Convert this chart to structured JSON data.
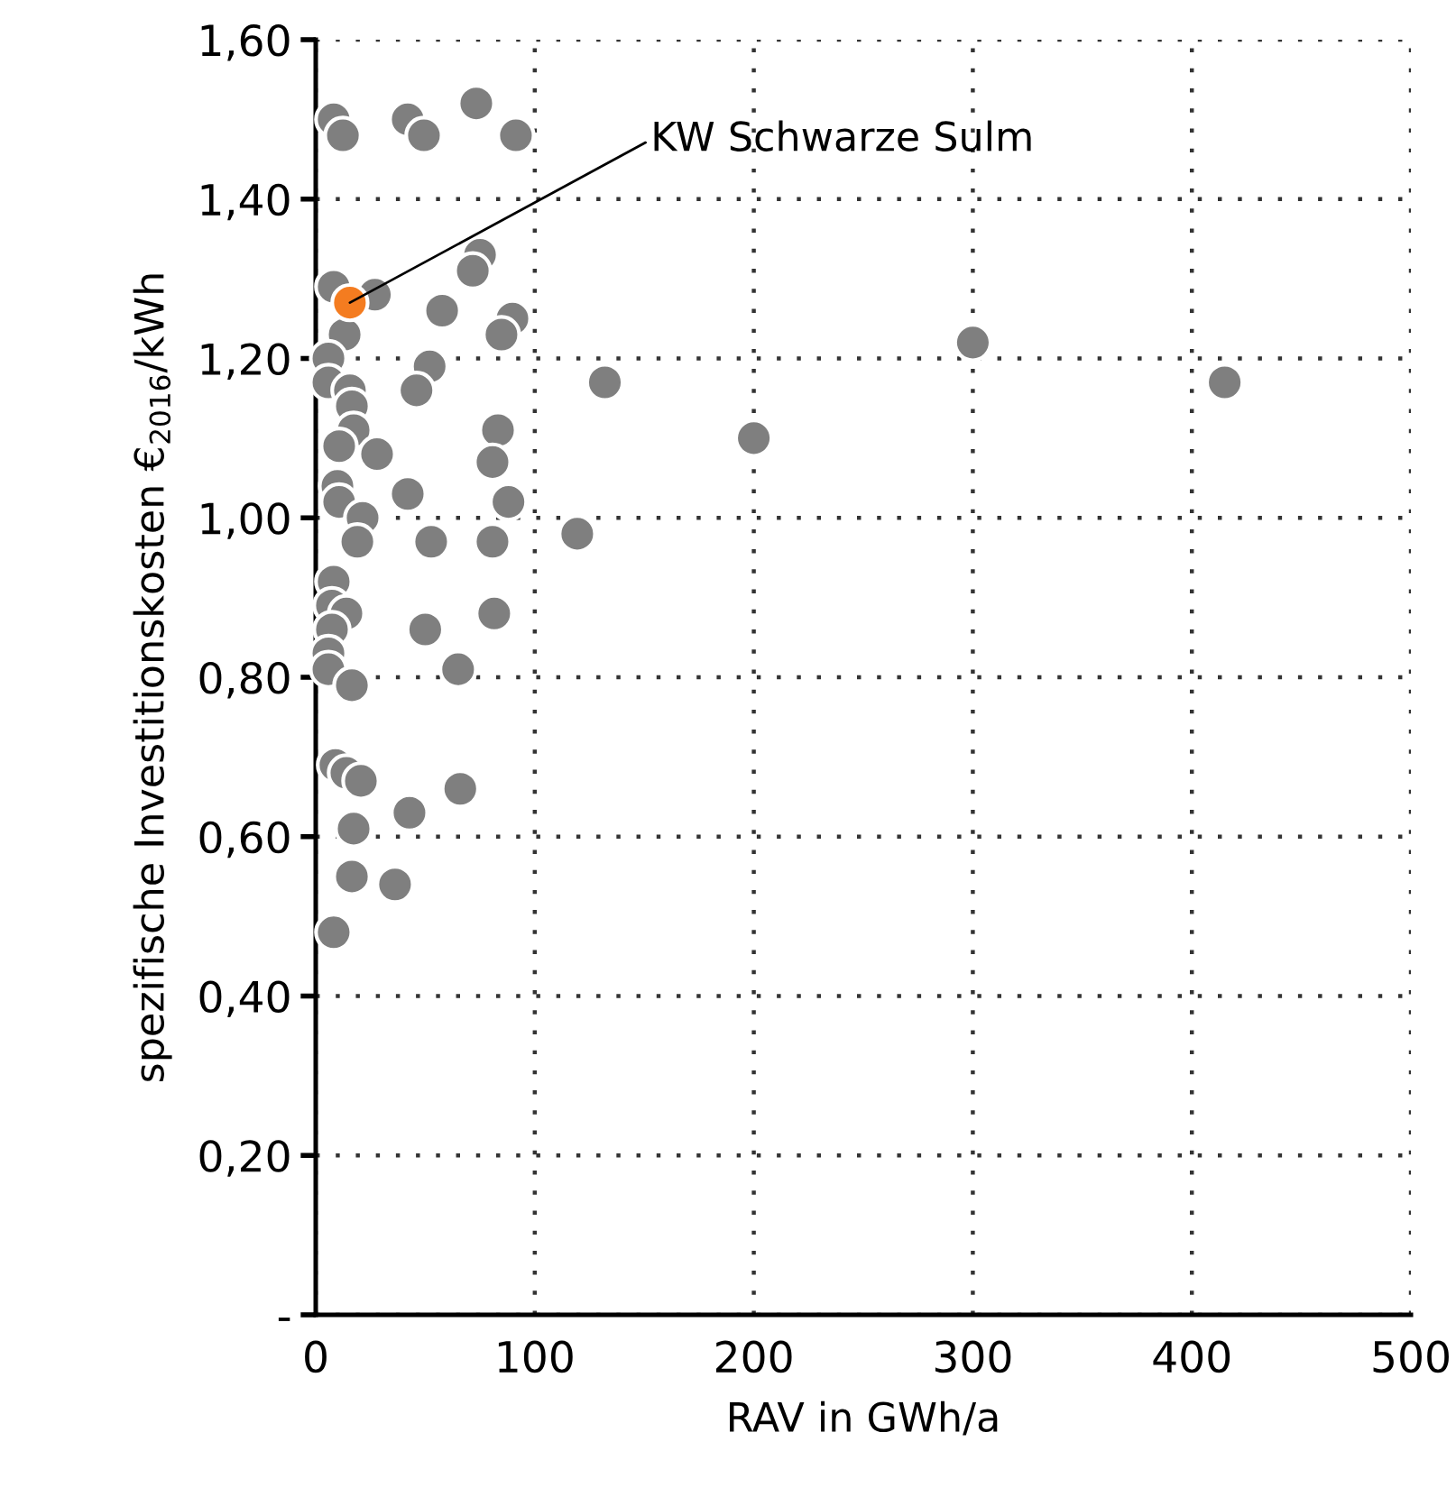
{
  "chart_data": {
    "type": "scatter",
    "xlabel": "RAV in GWh/a",
    "ylabel": "spezifische Investitionskosten €$_{2016}$/kWh",
    "xlim": [
      0,
      500
    ],
    "xticks": [
      0,
      100,
      200,
      300,
      400,
      500
    ],
    "ylim": [
      0,
      1.6
    ],
    "yticks": [
      {
        "value": 0,
        "label": "-"
      },
      {
        "value": 0.2,
        "label": "0,20"
      },
      {
        "value": 0.4,
        "label": "0,40"
      },
      {
        "value": 0.6,
        "label": "0,60"
      },
      {
        "value": 0.8,
        "label": "0,80"
      },
      {
        "value": 1.0,
        "label": "1,00"
      },
      {
        "value": 1.2,
        "label": "1,20"
      },
      {
        "value": 1.4,
        "label": "1,40"
      },
      {
        "value": 1.6,
        "label": "1,60"
      }
    ],
    "grid": true,
    "marker": "circle",
    "legend": false,
    "series": [
      {
        "color": "#7f7f7f",
        "x": [
          8.2,
          12.4,
          42,
          49.4,
          73.3,
          91.4,
          75,
          71.7,
          8.2,
          27,
          57.7,
          89.8,
          84.8,
          13.2,
          5.8,
          5.8,
          15.6,
          16.5,
          52,
          46,
          132,
          17.3,
          83.2,
          10.7,
          28,
          80.7,
          9.9,
          10.7,
          42,
          88,
          21.4,
          19,
          52.7,
          80.7,
          119.4,
          8.2,
          7.4,
          14,
          7.4,
          50,
          81.5,
          5.8,
          5.8,
          16.5,
          65,
          9,
          14,
          20.6,
          66,
          42.8,
          17.3,
          16.5,
          36.2,
          8.2,
          200,
          300,
          415
        ],
        "values": [
          1.5,
          1.48,
          1.5,
          1.48,
          1.52,
          1.48,
          1.33,
          1.31,
          1.29,
          1.28,
          1.26,
          1.25,
          1.23,
          1.23,
          1.2,
          1.17,
          1.16,
          1.14,
          1.19,
          1.16,
          1.17,
          1.11,
          1.11,
          1.09,
          1.08,
          1.07,
          1.04,
          1.02,
          1.03,
          1.02,
          1.0,
          0.97,
          0.97,
          0.97,
          0.98,
          0.92,
          0.89,
          0.88,
          0.86,
          0.86,
          0.88,
          0.83,
          0.81,
          0.79,
          0.81,
          0.69,
          0.68,
          0.67,
          0.66,
          0.63,
          0.61,
          0.55,
          0.54,
          0.48,
          1.1,
          1.22,
          1.17
        ]
      },
      {
        "color": "#f47c20",
        "x": [
          15.6
        ],
        "values": [
          1.27
        ]
      }
    ],
    "annotations": [
      {
        "text": "KW Schwarze Sulm",
        "x": 15.6,
        "y": 1.27
      }
    ]
  }
}
